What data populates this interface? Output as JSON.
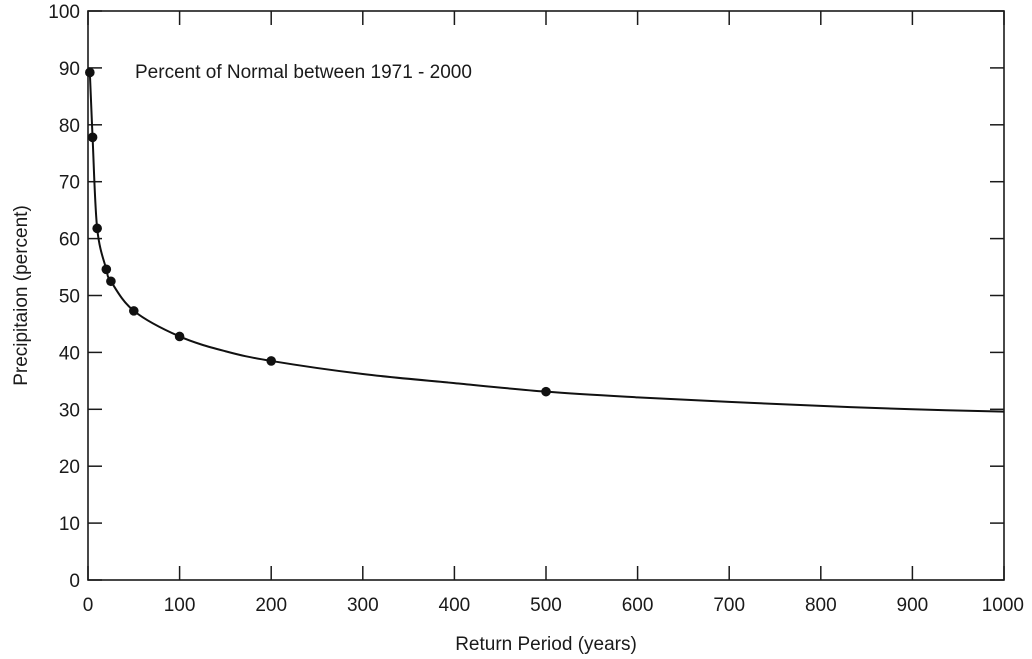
{
  "chart_data": {
    "type": "line",
    "title": "",
    "annotation": "Percent of Normal between 1971 - 2000",
    "xlabel": "Return Period (years)",
    "ylabel": "Precipitaion (percent)",
    "xlim": [
      0,
      1000
    ],
    "ylim": [
      0,
      100
    ],
    "x_ticks": [
      "0",
      "100",
      "200",
      "300",
      "400",
      "500",
      "600",
      "700",
      "800",
      "900",
      "1000"
    ],
    "y_ticks": [
      "0",
      "10",
      "20",
      "30",
      "40",
      "50",
      "60",
      "70",
      "80",
      "90",
      "100"
    ],
    "grid": false,
    "legend": "none",
    "series": [
      {
        "points": [
          {
            "x": 2,
            "y": 89.2
          },
          {
            "x": 5,
            "y": 77.8
          },
          {
            "x": 10,
            "y": 61.8
          },
          {
            "x": 20,
            "y": 54.6
          },
          {
            "x": 25,
            "y": 52.5
          },
          {
            "x": 50,
            "y": 47.3
          },
          {
            "x": 100,
            "y": 42.8
          },
          {
            "x": 200,
            "y": 38.5
          },
          {
            "x": 500,
            "y": 33.1
          }
        ],
        "curve": [
          {
            "x": 2,
            "y": 89.2
          },
          {
            "x": 5,
            "y": 77.8
          },
          {
            "x": 10,
            "y": 61.8
          },
          {
            "x": 20,
            "y": 54.6
          },
          {
            "x": 25,
            "y": 52.5
          },
          {
            "x": 50,
            "y": 47.3
          },
          {
            "x": 100,
            "y": 42.8
          },
          {
            "x": 150,
            "y": 40.2
          },
          {
            "x": 200,
            "y": 38.5
          },
          {
            "x": 300,
            "y": 36.2
          },
          {
            "x": 400,
            "y": 34.6
          },
          {
            "x": 500,
            "y": 33.1
          },
          {
            "x": 600,
            "y": 32.1
          },
          {
            "x": 700,
            "y": 31.3
          },
          {
            "x": 800,
            "y": 30.6
          },
          {
            "x": 900,
            "y": 30.0
          },
          {
            "x": 1000,
            "y": 29.6
          }
        ]
      }
    ]
  }
}
